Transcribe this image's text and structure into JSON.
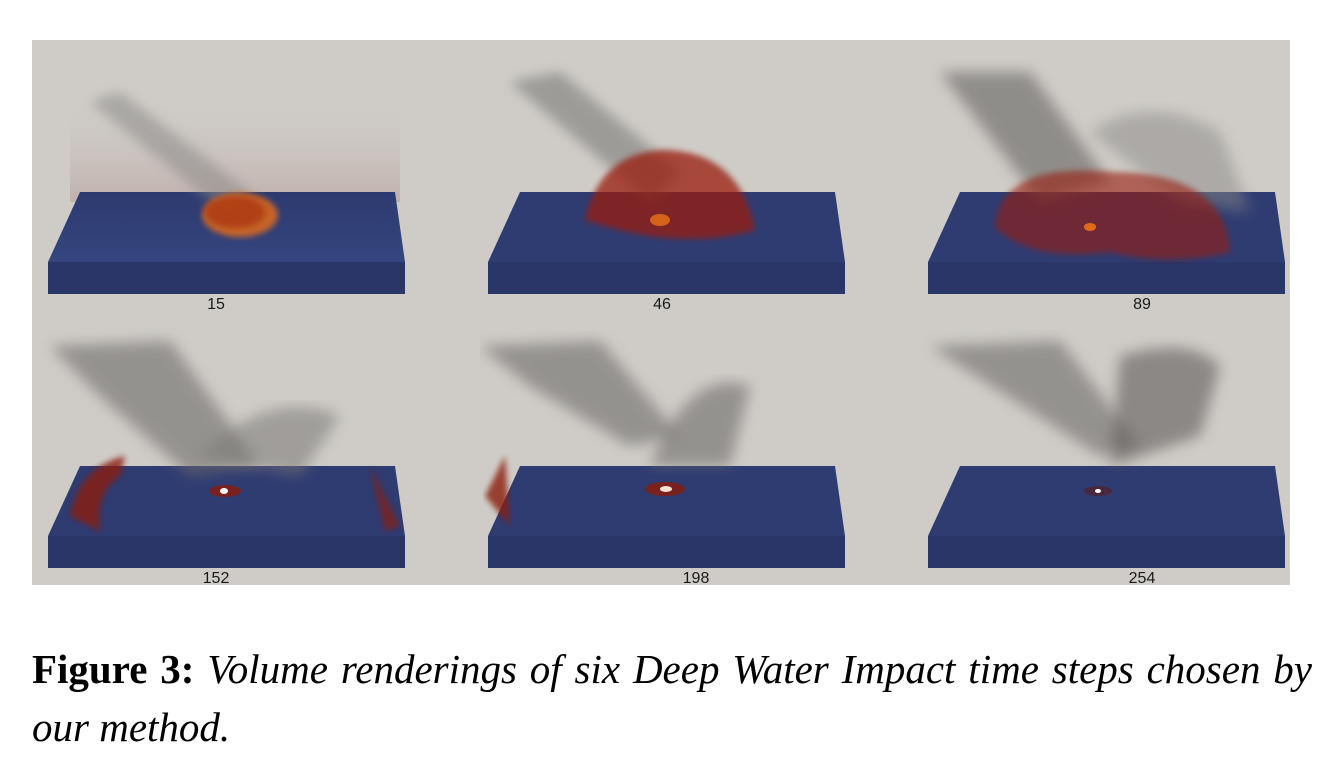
{
  "figure": {
    "panel_background": "#cfccc7",
    "ground_color": "#2e3a6b",
    "splash_color": "#8b1a0a",
    "splash_highlight": "#e8691e",
    "vapor_color": "#6b6b6b",
    "panels": [
      {
        "time_step": "15"
      },
      {
        "time_step": "46"
      },
      {
        "time_step": "89"
      },
      {
        "time_step": "152"
      },
      {
        "time_step": "198"
      },
      {
        "time_step": "254"
      }
    ]
  },
  "caption": {
    "label": "Figure 3:",
    "text": "Volume renderings of six Deep Water Impact time steps chosen by our method."
  }
}
